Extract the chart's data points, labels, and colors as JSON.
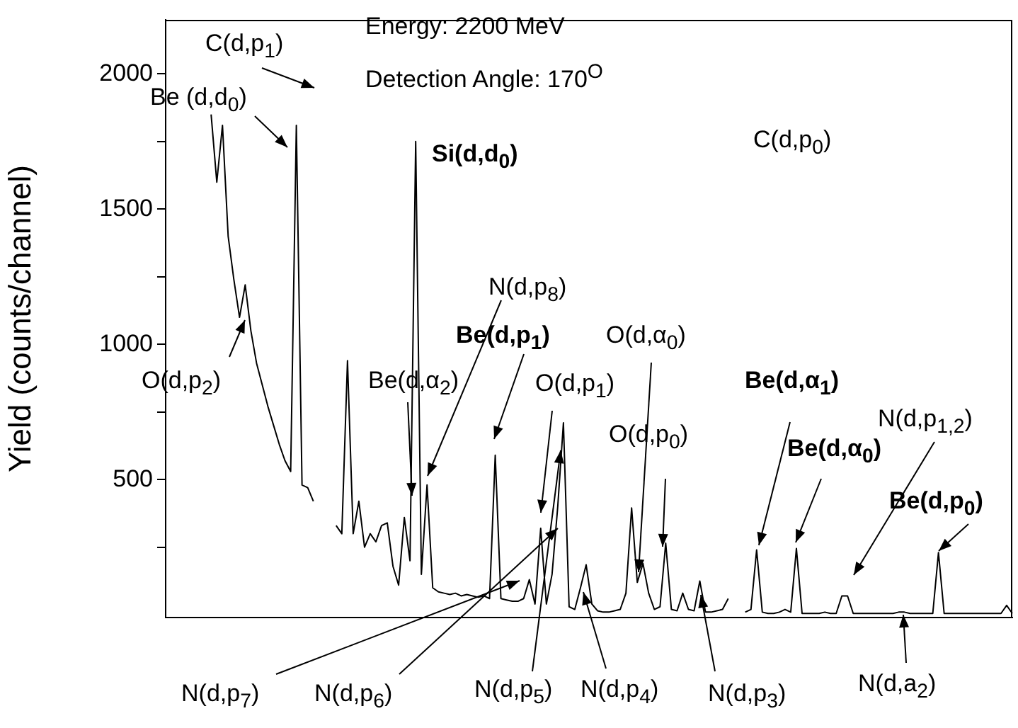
{
  "chart_data": {
    "type": "line",
    "ylabel": "Yield (counts/channel)",
    "categories": [
      null,
      null,
      null,
      null,
      null,
      null,
      null,
      null,
      null,
      null,
      null,
      null,
      null,
      null,
      null,
      null,
      null,
      null,
      null,
      null,
      null,
      null,
      null,
      null,
      null,
      null,
      null,
      null,
      null,
      null,
      null,
      null,
      null,
      null,
      null,
      null,
      null,
      null,
      null,
      null,
      null,
      null,
      null,
      null,
      null,
      null,
      null,
      null,
      null,
      null,
      null,
      null,
      null,
      null,
      null,
      null,
      null,
      null,
      null,
      null,
      null,
      null,
      null,
      null,
      null,
      null,
      null,
      null,
      null,
      null,
      null,
      null,
      null,
      null,
      null,
      null,
      null,
      null,
      null,
      null,
      null,
      null,
      null,
      null,
      null,
      null,
      null,
      null,
      null,
      null,
      null,
      null,
      null,
      null,
      null,
      null,
      null,
      null,
      null,
      null,
      null,
      null,
      null,
      null,
      null,
      null,
      null,
      null,
      null,
      null,
      null,
      null,
      null,
      null,
      null,
      null,
      null,
      null,
      null,
      null,
      null,
      null,
      null,
      null,
      null,
      null,
      null,
      null,
      null,
      null,
      null,
      null,
      null,
      null,
      null,
      null,
      null,
      null,
      null,
      null,
      null,
      null,
      null,
      null,
      null,
      null,
      null,
      null,
      null,
      null
    ],
    "series": [
      {
        "color": "#000000",
        "values": [
          null,
          null,
          null,
          null,
          null,
          null,
          null,
          null,
          1850,
          1600,
          1810,
          1400,
          1240,
          1100,
          1220,
          1050,
          930,
          850,
          770,
          700,
          630,
          570,
          530,
          1810,
          480,
          470,
          420,
          null,
          null,
          null,
          330,
          300,
          940,
          300,
          420,
          250,
          300,
          270,
          330,
          340,
          180,
          110,
          360,
          200,
          1750,
          150,
          480,
          100,
          85,
          80,
          75,
          80,
          70,
          75,
          70,
          65,
          70,
          60,
          590,
          60,
          55,
          50,
          50,
          60,
          130,
          40,
          320,
          40,
          150,
          400,
          710,
          30,
          20,
          100,
          185,
          40,
          15,
          10,
          10,
          15,
          20,
          80,
          395,
          120,
          190,
          80,
          20,
          30,
          265,
          20,
          15,
          80,
          20,
          15,
          125,
          10,
          10,
          15,
          20,
          60,
          null,
          null,
          10,
          20,
          240,
          10,
          5,
          5,
          10,
          20,
          10,
          245,
          5,
          5,
          5,
          5,
          10,
          5,
          5,
          70,
          70,
          5,
          5,
          5,
          5,
          5,
          5,
          5,
          5,
          10,
          10,
          5,
          5,
          5,
          5,
          5,
          230,
          5,
          5,
          5,
          5,
          5,
          5,
          5,
          5,
          5,
          5,
          5,
          35,
          5
        ]
      }
    ],
    "ylim": [
      -10,
      2200
    ],
    "yticks": [
      {
        "value": 250,
        "label": null
      },
      500,
      {
        "value": 750,
        "label": null
      },
      1000,
      {
        "value": 1250,
        "label": null
      },
      1500,
      {
        "value": 1750,
        "label": null
      },
      2000
    ],
    "tick_labels": "y",
    "annotations": [
      "Energy: 2200 MeV",
      "Detection Angle: 170$^{O}$",
      "C(d,p$_{1}$)",
      "Be (d,d$_{0}$)",
      "Si(d,d$_{0}$)",
      "C(d,p$_{0}$)",
      "N(d,p$_{8}$)",
      "Be(d,p$_{1}$)",
      "Be(d,α$_{2}$)",
      "O(d,α$_{0}$)",
      "O(d,p$_{1}$)",
      "O(d,p$_{0}$)",
      "O(d,p$_{2}$)",
      "Be(d,α$_{1}$)",
      "Be(d,α$_{0}$)",
      "N(d,p$_{1,2}$)",
      "Be(d,p$_{0}$)",
      "N(d,p$_{7}$)",
      "N(d,p$_{6}$)",
      "N(d,p$_{5}$)",
      "N(d,p$_{4}$)",
      "N(d,p$_{3}$)",
      "N(d,a$_{2}$)"
    ]
  }
}
